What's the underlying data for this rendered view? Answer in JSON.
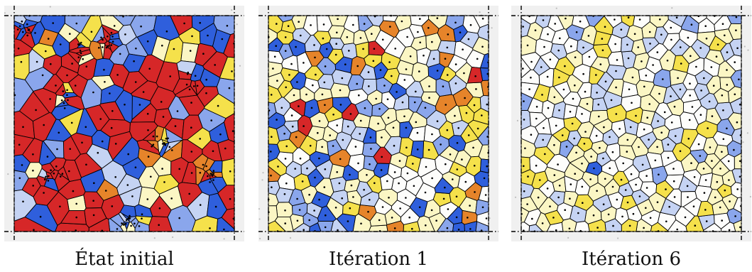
{
  "panels": [
    {
      "caption": "État initial",
      "state": "initial"
    },
    {
      "caption": "Itération 1",
      "state": "iteration-1"
    },
    {
      "caption": "Itération 6",
      "state": "iteration-6"
    }
  ],
  "palette": {
    "red": "#d62728",
    "orange": "#e6842a",
    "yellow": "#f5e14b",
    "light_yellow": "#fbf6c4",
    "white": "#fdfdfb",
    "light_blue": "#c5d3f3",
    "mid_blue": "#8aa6ec",
    "blue": "#2f5fdc",
    "edge": "#000000",
    "margin": "#f0f0f0",
    "dot": "#bdbdbd"
  }
}
